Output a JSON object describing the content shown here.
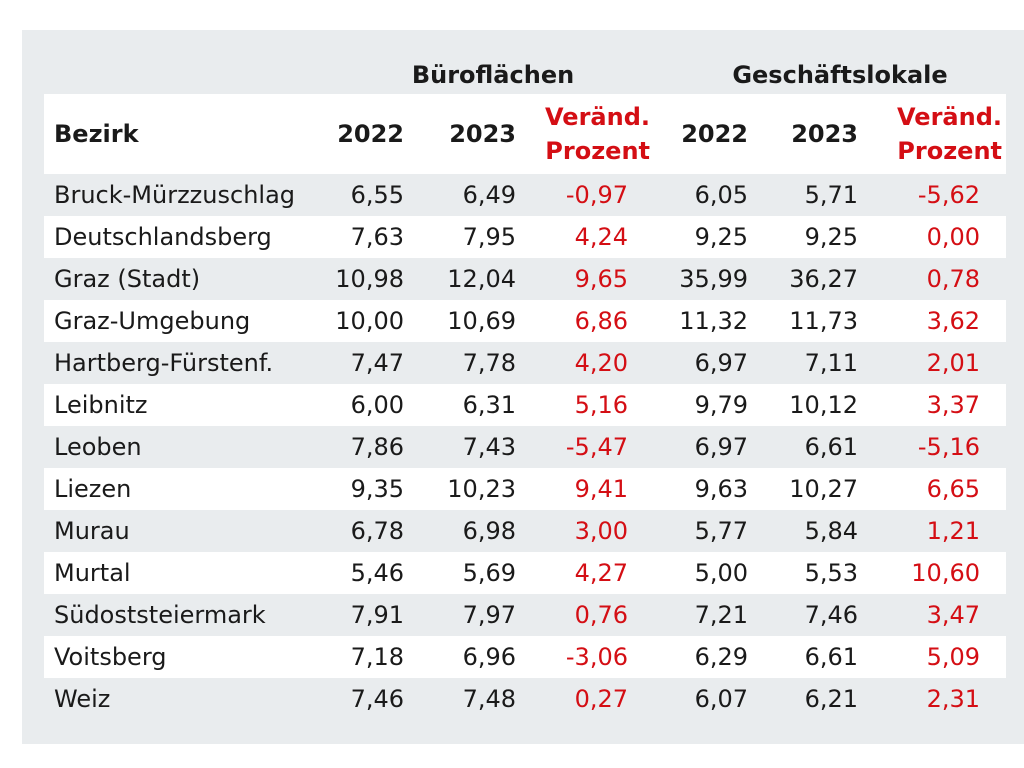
{
  "groups": {
    "buero": "Büroflächen",
    "gesch": "Geschäftslokale"
  },
  "columns": {
    "bezirk": "Bezirk",
    "y2022": "2022",
    "y2023": "2023",
    "change_line1": "Veränd.",
    "change_line2": "Prozent"
  },
  "colors": {
    "accent_red": "#d40e14",
    "panel_gray": "#e9ecee"
  },
  "rows": [
    {
      "bezirk": "Bruck-Mürzzuschlag",
      "b2022": "6,55",
      "b2023": "6,49",
      "bchg": "-0,97",
      "g2022": "6,05",
      "g2023": "5,71",
      "gchg": "-5,62"
    },
    {
      "bezirk": "Deutschlandsberg",
      "b2022": "7,63",
      "b2023": "7,95",
      "bchg": "4,24",
      "g2022": "9,25",
      "g2023": "9,25",
      "gchg": "0,00"
    },
    {
      "bezirk": "Graz (Stadt)",
      "b2022": "10,98",
      "b2023": "12,04",
      "bchg": "9,65",
      "g2022": "35,99",
      "g2023": "36,27",
      "gchg": "0,78"
    },
    {
      "bezirk": "Graz-Umgebung",
      "b2022": "10,00",
      "b2023": "10,69",
      "bchg": "6,86",
      "g2022": "11,32",
      "g2023": "11,73",
      "gchg": "3,62"
    },
    {
      "bezirk": "Hartberg-Fürstenf.",
      "b2022": "7,47",
      "b2023": "7,78",
      "bchg": "4,20",
      "g2022": "6,97",
      "g2023": "7,11",
      "gchg": "2,01"
    },
    {
      "bezirk": "Leibnitz",
      "b2022": "6,00",
      "b2023": "6,31",
      "bchg": "5,16",
      "g2022": "9,79",
      "g2023": "10,12",
      "gchg": "3,37"
    },
    {
      "bezirk": "Leoben",
      "b2022": "7,86",
      "b2023": "7,43",
      "bchg": "-5,47",
      "g2022": "6,97",
      "g2023": "6,61",
      "gchg": "-5,16"
    },
    {
      "bezirk": "Liezen",
      "b2022": "9,35",
      "b2023": "10,23",
      "bchg": "9,41",
      "g2022": "9,63",
      "g2023": "10,27",
      "gchg": "6,65"
    },
    {
      "bezirk": "Murau",
      "b2022": "6,78",
      "b2023": "6,98",
      "bchg": "3,00",
      "g2022": "5,77",
      "g2023": "5,84",
      "gchg": "1,21"
    },
    {
      "bezirk": "Murtal",
      "b2022": "5,46",
      "b2023": "5,69",
      "bchg": "4,27",
      "g2022": "5,00",
      "g2023": "5,53",
      "gchg": "10,60"
    },
    {
      "bezirk": "Südoststeiermark",
      "b2022": "7,91",
      "b2023": "7,97",
      "bchg": "0,76",
      "g2022": "7,21",
      "g2023": "7,46",
      "gchg": "3,47"
    },
    {
      "bezirk": "Voitsberg",
      "b2022": "7,18",
      "b2023": "6,96",
      "bchg": "-3,06",
      "g2022": "6,29",
      "g2023": "6,61",
      "gchg": "5,09"
    },
    {
      "bezirk": "Weiz",
      "b2022": "7,46",
      "b2023": "7,48",
      "bchg": "0,27",
      "g2022": "6,07",
      "g2023": "6,21",
      "gchg": "2,31"
    }
  ]
}
